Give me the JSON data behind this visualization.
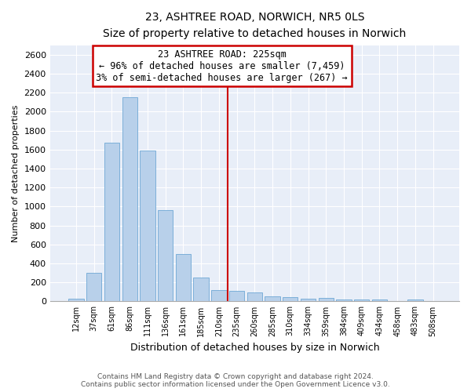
{
  "title1": "23, ASHTREE ROAD, NORWICH, NR5 0LS",
  "title2": "Size of property relative to detached houses in Norwich",
  "xlabel": "Distribution of detached houses by size in Norwich",
  "ylabel": "Number of detached properties",
  "bar_labels": [
    "12sqm",
    "37sqm",
    "61sqm",
    "86sqm",
    "111sqm",
    "136sqm",
    "161sqm",
    "185sqm",
    "210sqm",
    "235sqm",
    "260sqm",
    "285sqm",
    "310sqm",
    "334sqm",
    "359sqm",
    "384sqm",
    "409sqm",
    "434sqm",
    "458sqm",
    "483sqm",
    "508sqm"
  ],
  "bar_heights": [
    25,
    300,
    1670,
    2150,
    1590,
    960,
    500,
    250,
    120,
    110,
    95,
    50,
    45,
    30,
    35,
    20,
    20,
    20,
    5,
    20,
    5
  ],
  "bar_color": "#b8d0ea",
  "bar_edge_color": "#6fa8d5",
  "background_color": "#e8eef8",
  "grid_color": "#d0d8e8",
  "property_line_x": 8.5,
  "annotation_text": "23 ASHTREE ROAD: 225sqm\n← 96% of detached houses are smaller (7,459)\n3% of semi-detached houses are larger (267) →",
  "annotation_box_color": "#cc0000",
  "ylim": [
    0,
    2700
  ],
  "yticks": [
    0,
    200,
    400,
    600,
    800,
    1000,
    1200,
    1400,
    1600,
    1800,
    2000,
    2200,
    2400,
    2600
  ],
  "footer1": "Contains HM Land Registry data © Crown copyright and database right 2024.",
  "footer2": "Contains public sector information licensed under the Open Government Licence v3.0."
}
